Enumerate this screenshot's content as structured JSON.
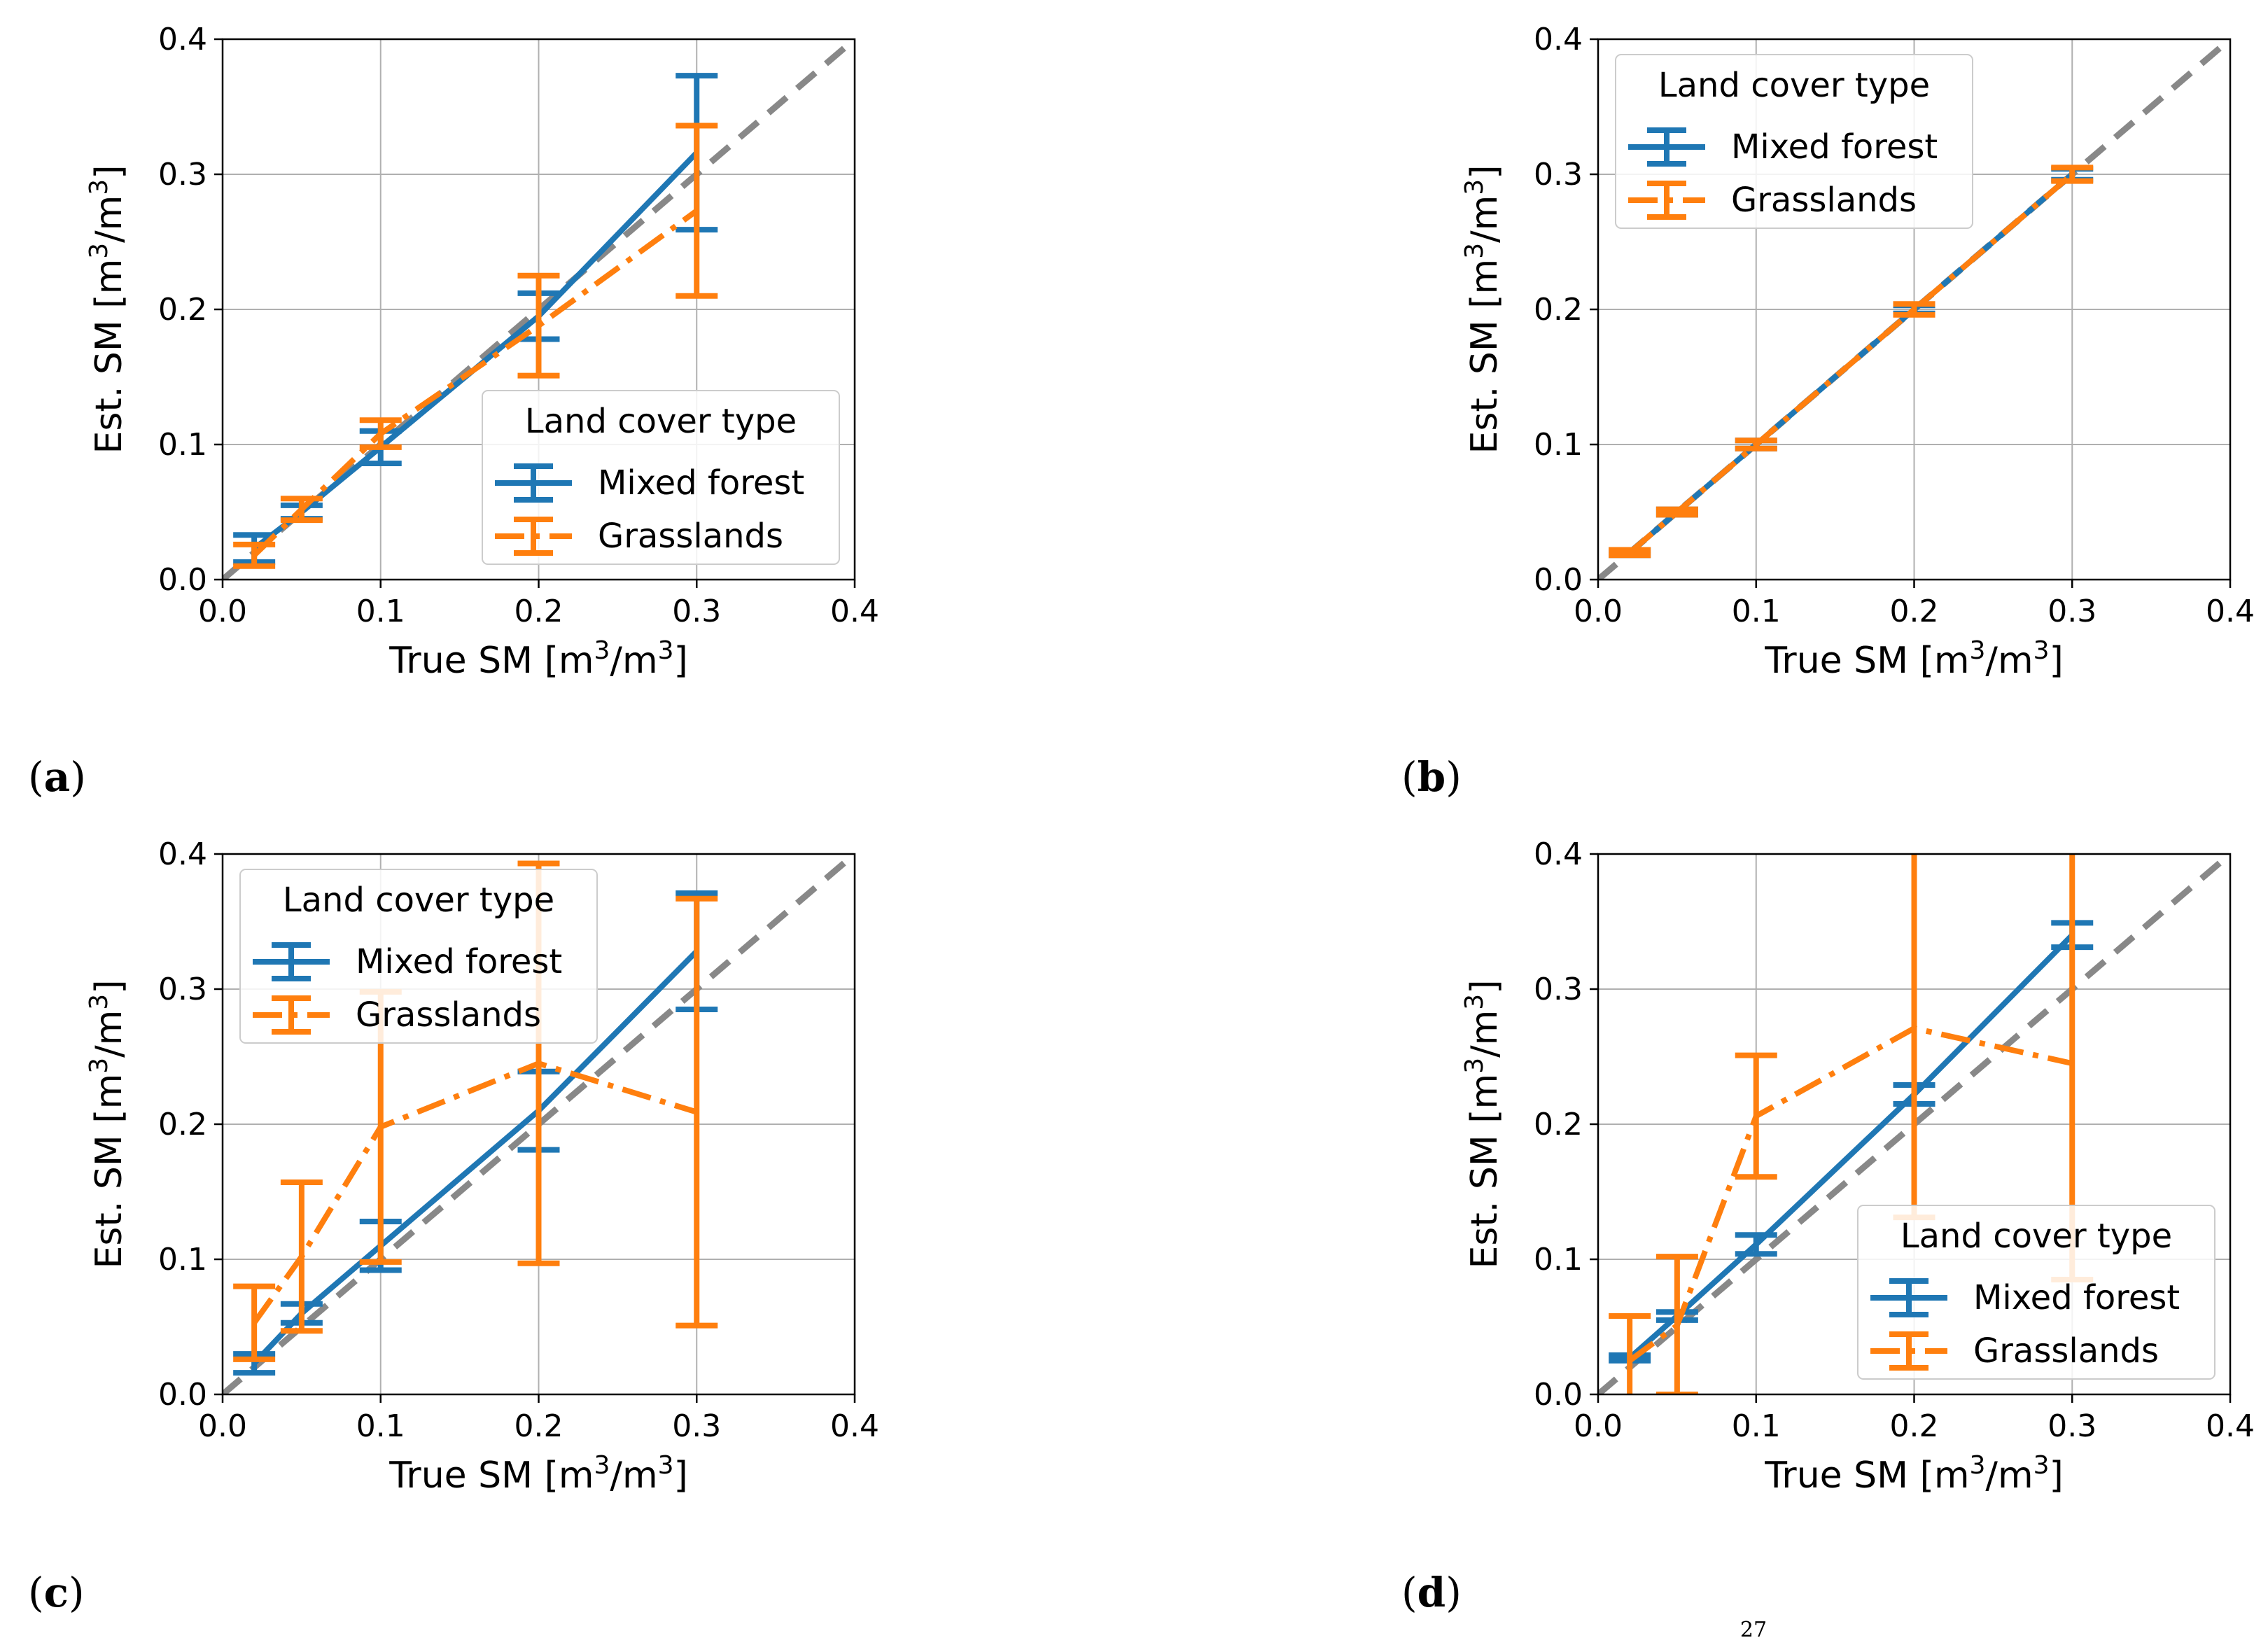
{
  "figure": {
    "colors": {
      "mixed_forest": "#1f77b4",
      "grasslands": "#ff7f0e",
      "identity_line": "#888888",
      "grid": "#b0b0b0"
    },
    "legend_title": "Land cover type",
    "series_names": [
      "Mixed forest",
      "Grasslands"
    ],
    "x_axis_label": {
      "text": "True SM [m",
      "sup1": "3",
      "mid": "/m",
      "sup2": "3",
      "end": "]"
    },
    "y_axis_label": {
      "text": "Est. SM [m",
      "sup1": "3",
      "mid": "/m",
      "sup2": "3",
      "end": "]"
    },
    "xticks": [
      "0.0",
      "0.1",
      "0.2",
      "0.3",
      "0.4"
    ],
    "yticks": [
      "0.0",
      "0.1",
      "0.2",
      "0.3",
      "0.4"
    ],
    "footer_text": "27"
  },
  "chart_data": [
    {
      "panel": "(a)",
      "type": "line-errorbar",
      "xlim": [
        0,
        0.4
      ],
      "ylim": [
        0,
        0.4
      ],
      "legend_loc": "lower-right",
      "series": [
        {
          "name": "Mixed forest",
          "x": [
            0.02,
            0.05,
            0.1,
            0.2,
            0.3
          ],
          "y": [
            0.023,
            0.05,
            0.098,
            0.195,
            0.316
          ],
          "yerr": [
            0.01,
            0.005,
            0.012,
            0.017,
            0.057
          ]
        },
        {
          "name": "Grasslands",
          "x": [
            0.02,
            0.05,
            0.1,
            0.2,
            0.3
          ],
          "y": [
            0.018,
            0.052,
            0.108,
            0.188,
            0.273
          ],
          "yerr": [
            0.008,
            0.008,
            0.01,
            0.037,
            0.063
          ]
        }
      ]
    },
    {
      "panel": "(b)",
      "type": "line-errorbar",
      "xlim": [
        0,
        0.4
      ],
      "ylim": [
        0,
        0.4
      ],
      "legend_loc": "upper-left",
      "series": [
        {
          "name": "Mixed forest",
          "x": [
            0.02,
            0.05,
            0.1,
            0.2,
            0.3
          ],
          "y": [
            0.02,
            0.05,
            0.1,
            0.2,
            0.3
          ],
          "yerr": [
            0.002,
            0.002,
            0.003,
            0.003,
            0.004
          ]
        },
        {
          "name": "Grasslands",
          "x": [
            0.02,
            0.05,
            0.1,
            0.2,
            0.3
          ],
          "y": [
            0.02,
            0.05,
            0.1,
            0.2,
            0.3
          ],
          "yerr": [
            0.002,
            0.002,
            0.003,
            0.004,
            0.005
          ]
        }
      ]
    },
    {
      "panel": "(c)",
      "type": "line-errorbar",
      "xlim": [
        0,
        0.4
      ],
      "ylim": [
        0,
        0.4
      ],
      "legend_loc": "upper-left",
      "series": [
        {
          "name": "Mixed forest",
          "x": [
            0.02,
            0.05,
            0.1,
            0.2,
            0.3
          ],
          "y": [
            0.023,
            0.06,
            0.11,
            0.21,
            0.328
          ],
          "yerr": [
            0.007,
            0.007,
            0.018,
            0.029,
            0.043
          ]
        },
        {
          "name": "Grasslands",
          "x": [
            0.02,
            0.05,
            0.1,
            0.2,
            0.3
          ],
          "y": [
            0.053,
            0.102,
            0.198,
            0.245,
            0.209
          ],
          "yerr": [
            0.027,
            0.055,
            0.1,
            0.148,
            0.158
          ]
        }
      ]
    },
    {
      "panel": "(d)",
      "type": "line-errorbar",
      "xlim": [
        0,
        0.4
      ],
      "ylim": [
        0,
        0.4
      ],
      "legend_loc": "lower-right",
      "series": [
        {
          "name": "Mixed forest",
          "x": [
            0.02,
            0.05,
            0.1,
            0.2,
            0.3
          ],
          "y": [
            0.027,
            0.058,
            0.111,
            0.222,
            0.34
          ],
          "yerr": [
            0.002,
            0.003,
            0.007,
            0.007,
            0.009
          ]
        },
        {
          "name": "Grasslands",
          "x": [
            0.02,
            0.05,
            0.1,
            0.2,
            0.3
          ],
          "y": [
            0.025,
            0.051,
            0.206,
            0.271,
            0.245
          ],
          "yerr": [
            0.033,
            0.051,
            0.045,
            0.14,
            0.16
          ]
        }
      ]
    }
  ]
}
